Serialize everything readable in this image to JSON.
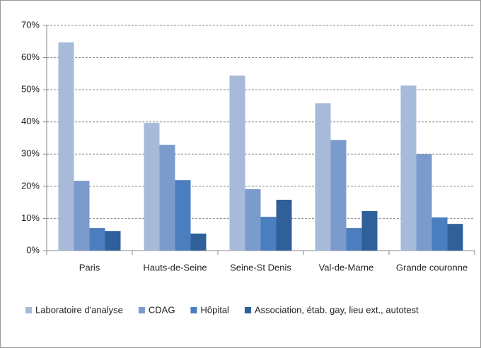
{
  "chart_data": {
    "type": "bar",
    "categories": [
      "Paris",
      "Hauts-de-Seine",
      "Seine-St Denis",
      "Val-de-Marne",
      "Grande couronne"
    ],
    "series": [
      {
        "name": "Laboratoire d'analyse",
        "color": "#a7bad9",
        "values": [
          64.7,
          39.7,
          54.4,
          45.8,
          51.3
        ]
      },
      {
        "name": "CDAG",
        "color": "#7b9bcc",
        "values": [
          21.7,
          32.9,
          19.1,
          34.4,
          30.0
        ]
      },
      {
        "name": "Hôpital",
        "color": "#4a7ebf",
        "values": [
          7.0,
          21.9,
          10.5,
          7.0,
          10.3
        ]
      },
      {
        "name": "Association, étab. gay, lieu ext., autotest",
        "color": "#30609a",
        "values": [
          6.1,
          5.3,
          15.8,
          12.3,
          8.3
        ]
      }
    ],
    "ylim": [
      0,
      70
    ],
    "yticks": [
      {
        "value": 0,
        "label": "0%"
      },
      {
        "value": 10,
        "label": "10%"
      },
      {
        "value": 20,
        "label": "20%"
      },
      {
        "value": 30,
        "label": "30%"
      },
      {
        "value": 40,
        "label": "40%"
      },
      {
        "value": 50,
        "label": "50%"
      },
      {
        "value": 60,
        "label": "60%"
      },
      {
        "value": 70,
        "label": "70%"
      }
    ],
    "grid": true,
    "legend": "bottom"
  }
}
